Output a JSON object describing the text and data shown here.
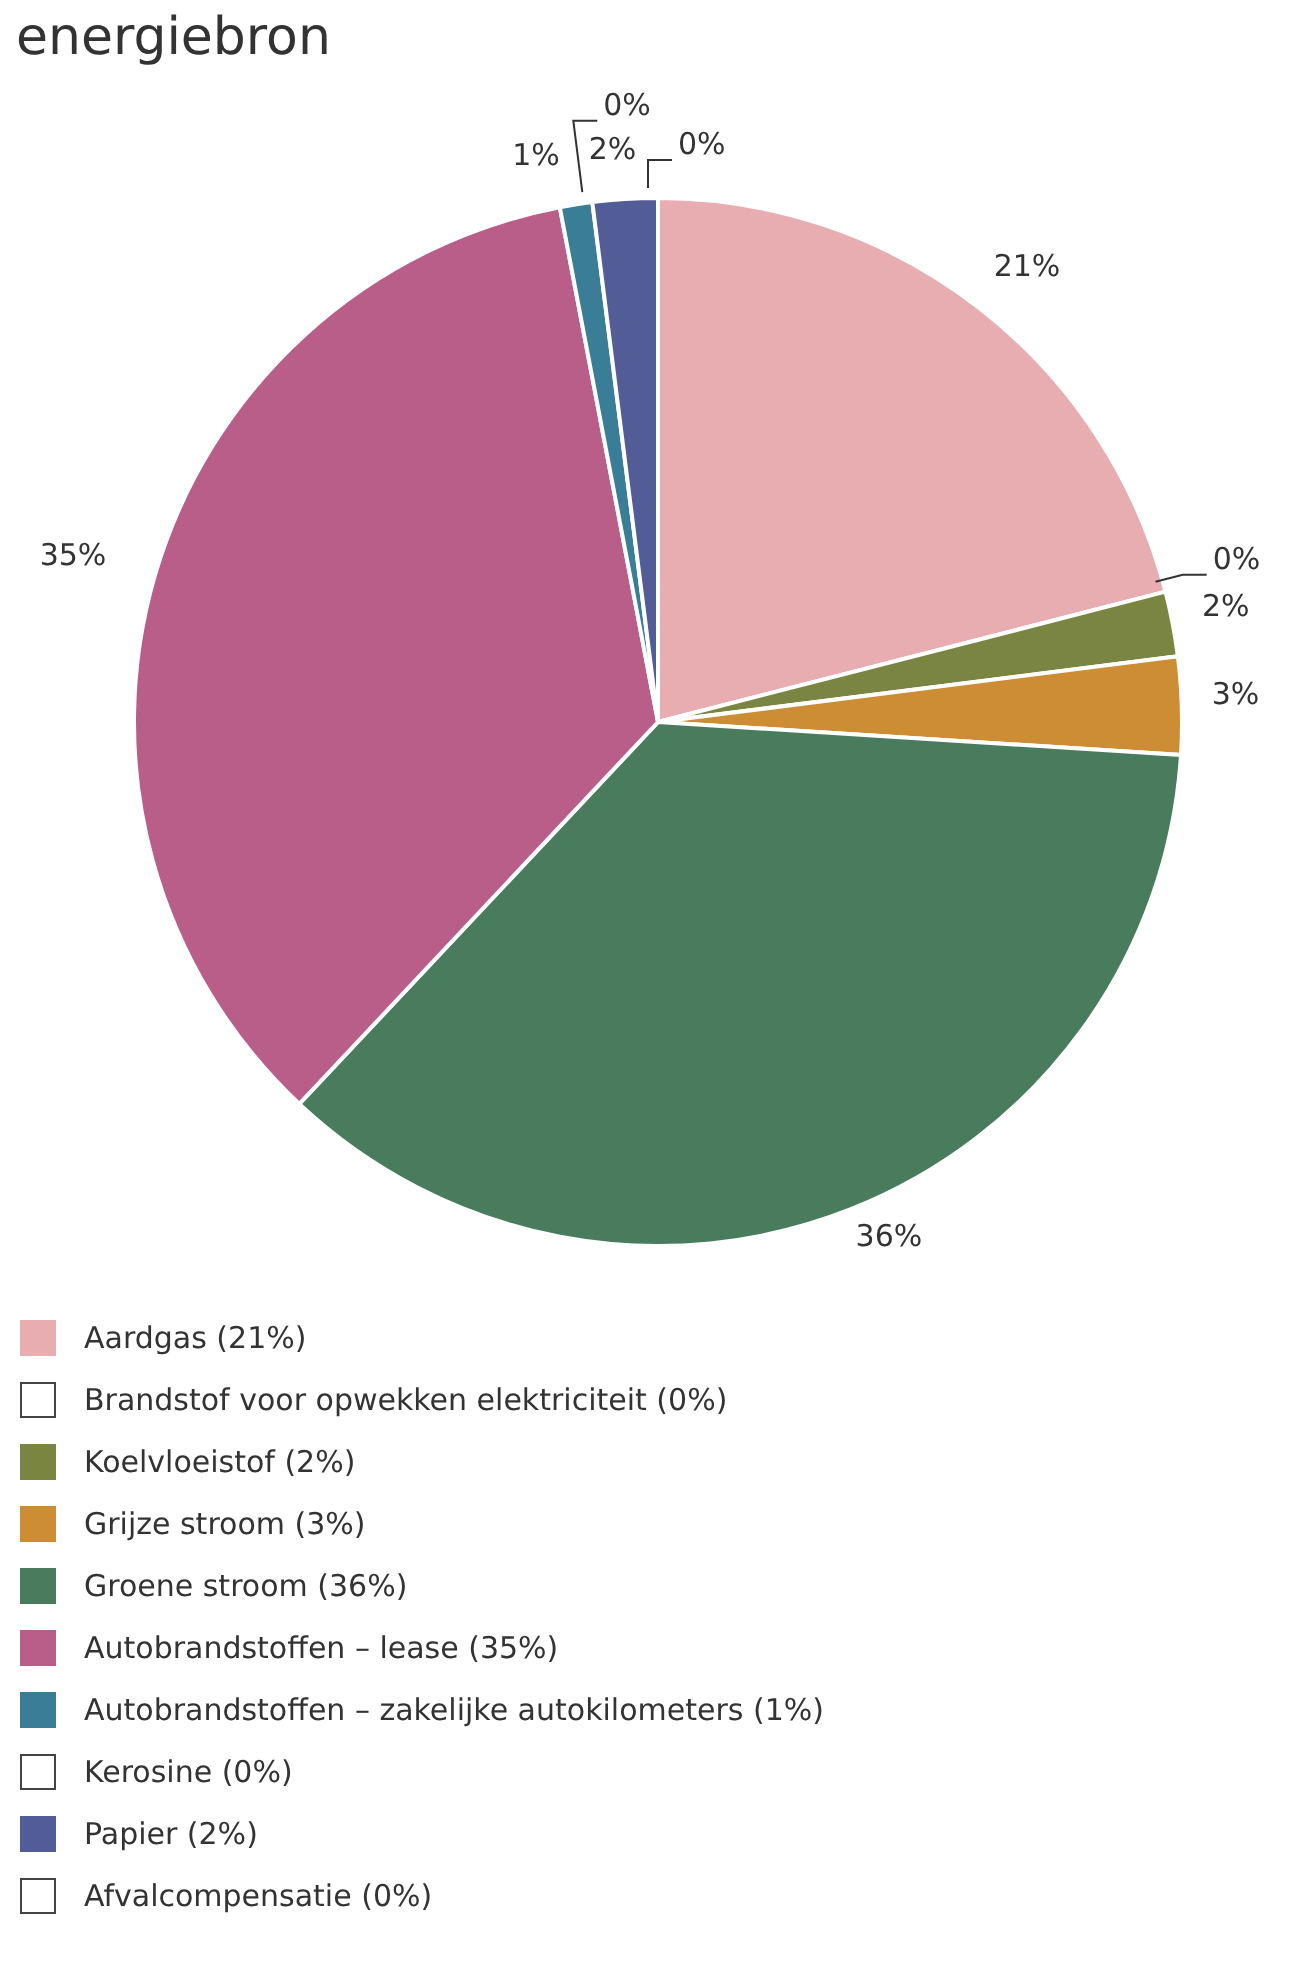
{
  "chart_data": {
    "type": "pie",
    "title": "energiebron",
    "categories": [
      "Aardgas (21%)",
      "Brandstof voor opwekken elektriciteit (0%)",
      "Koelvloeistof (2%)",
      "Grijze stroom (3%)",
      "Groene stroom (36%)",
      "Autobrandstoffen – lease (35%)",
      "Autobrandstoffen – zakelijke autokilometers (1%)",
      "Kerosine (0%)",
      "Papier (2%)",
      "Afvalcompensatie (0%)"
    ],
    "values": [
      21,
      0,
      2,
      3,
      36,
      35,
      1,
      0,
      2,
      0
    ],
    "value_labels": [
      "21%",
      "0%",
      "2%",
      "3%",
      "36%",
      "35%",
      "1%",
      "0%",
      "2%",
      "0%"
    ],
    "colors": [
      "#e8adb0",
      "#ffffff",
      "#798541",
      "#cc8d35",
      "#497c5d",
      "#b95e88",
      "#3a7d97",
      "#ffffff",
      "#525c96",
      "#ffffff"
    ],
    "legend": "bottom"
  }
}
